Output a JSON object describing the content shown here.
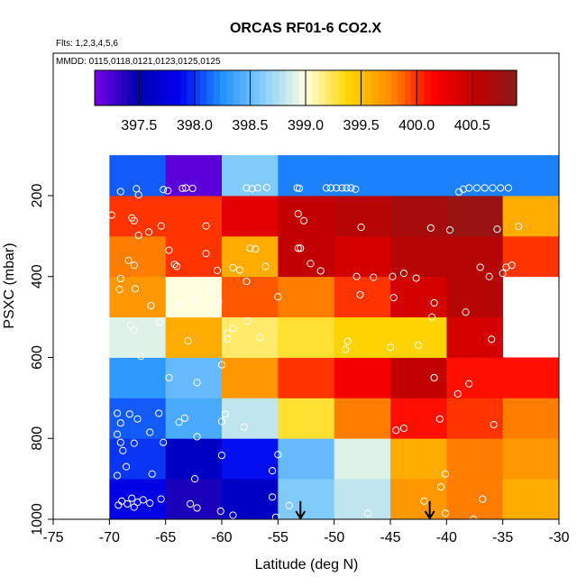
{
  "chart_data": {
    "type": "heatmap",
    "title": "ORCAS RF01-6 CO2.X",
    "subtitle_flights": "Flts: 1,2,3,4,5,6",
    "subtitle_dates": "MMDD: 0115,0118,0121,0123,0125,0125",
    "xlabel": "Latitude (deg N)",
    "ylabel": "PSXC (mbar)",
    "xlim": [
      -75,
      -30
    ],
    "ylim": [
      1000,
      100
    ],
    "x_ticks": [
      -75,
      -70,
      -65,
      -60,
      -55,
      -50,
      -45,
      -40,
      -35,
      -30
    ],
    "x_tick_labels": [
      "-75",
      "-70",
      "-65",
      "-60",
      "-55",
      "-50",
      "-45",
      "-40",
      "-35",
      "-30"
    ],
    "y_ticks": [
      200,
      400,
      600,
      800,
      1000
    ],
    "y_tick_labels": [
      "200",
      "400",
      "600",
      "800",
      "1000"
    ],
    "colorbar": {
      "min": 397.1,
      "max": 400.9,
      "ticks": [
        397.5,
        398.0,
        398.5,
        399.0,
        399.5,
        400.0,
        400.5
      ],
      "tick_labels": [
        "397.5",
        "398.0",
        "398.5",
        "399.0",
        "399.5",
        "400.0",
        "400.5"
      ],
      "colors": [
        "#7a00e6",
        "#0000b0",
        "#0000ee",
        "#1e90ff",
        "#87cefa",
        "#ffffe0",
        "#ffd700",
        "#ff8c00",
        "#ff0000",
        "#c00000",
        "#8b1a1a"
      ]
    },
    "lat_edges": [
      -70,
      -65,
      -60,
      -55,
      -50,
      -45,
      -40,
      -35,
      -30
    ],
    "pressure_edges": [
      1000,
      900,
      800,
      700,
      600,
      500,
      400,
      300,
      200,
      100
    ],
    "cells": [
      [
        397.8,
        397.4,
        397.6,
        398.6,
        398.8,
        399.7,
        399.8,
        399.6,
        null
      ],
      [
        398.0,
        397.6,
        397.9,
        398.5,
        398.9,
        399.6,
        399.8,
        399.7,
        null
      ],
      [
        398.1,
        398.4,
        398.8,
        399.3,
        399.8,
        400.1,
        400.0,
        399.8,
        null
      ],
      [
        398.3,
        398.5,
        399.7,
        400.0,
        400.2,
        400.5,
        400.1,
        400.1,
        null
      ],
      [
        398.9,
        399.6,
        399.2,
        399.3,
        399.4,
        399.4,
        400.4,
        null,
        null
      ],
      [
        399.7,
        399.0,
        399.9,
        399.8,
        400.0,
        400.4,
        400.6,
        null,
        null
      ],
      [
        399.8,
        400.0,
        399.6,
        400.5,
        400.4,
        400.6,
        400.6,
        400.0,
        null
      ],
      [
        400.0,
        400.0,
        400.3,
        400.5,
        400.6,
        400.7,
        400.8,
        399.6,
        null
      ],
      [
        398.1,
        397.2,
        398.6,
        398.2,
        398.2,
        398.2,
        398.2,
        398.2,
        null
      ]
    ],
    "observations": [
      [
        -69.2,
        965
      ],
      [
        -68.9,
        955
      ],
      [
        -68.4,
        962
      ],
      [
        -68.0,
        948
      ],
      [
        -67.8,
        970
      ],
      [
        -67.5,
        958
      ],
      [
        -67.0,
        952
      ],
      [
        -66.4,
        960
      ],
      [
        -65.4,
        950
      ],
      [
        -62.8,
        962
      ],
      [
        -62.2,
        972
      ],
      [
        -60.1,
        980
      ],
      [
        -59.0,
        990
      ],
      [
        -55.2,
        995
      ],
      [
        -55.5,
        945
      ],
      [
        -54.0,
        966
      ],
      [
        -47.0,
        985
      ],
      [
        -42.0,
        955
      ],
      [
        -40.1,
        985
      ],
      [
        -36.8,
        950
      ],
      [
        -37.6,
        1000
      ],
      [
        -69.3,
        892
      ],
      [
        -68.5,
        870
      ],
      [
        -66.2,
        888
      ],
      [
        -62.4,
        900
      ],
      [
        -60.0,
        842
      ],
      [
        -55.0,
        840
      ],
      [
        -55.5,
        880
      ],
      [
        -40.1,
        888
      ],
      [
        -40.5,
        920
      ],
      [
        -69.3,
        790
      ],
      [
        -69.0,
        810
      ],
      [
        -68.8,
        830
      ],
      [
        -67.8,
        812
      ],
      [
        -69.0,
        762
      ],
      [
        -67.5,
        752
      ],
      [
        -66.4,
        785
      ],
      [
        -65.2,
        810
      ],
      [
        -62.2,
        796
      ],
      [
        -60.0,
        758
      ],
      [
        -58.0,
        772
      ],
      [
        -59.7,
        740
      ],
      [
        -44.5,
        780
      ],
      [
        -43.8,
        775
      ],
      [
        -40.6,
        752
      ],
      [
        -35.8,
        766
      ],
      [
        -69.3,
        738
      ],
      [
        -68.2,
        740
      ],
      [
        -65.6,
        738
      ],
      [
        -63.8,
        760
      ],
      [
        -63.3,
        750
      ],
      [
        -39.0,
        690
      ],
      [
        -38.0,
        665
      ],
      [
        -41.1,
        650
      ],
      [
        -64.7,
        650
      ],
      [
        -62.2,
        662
      ],
      [
        -60.0,
        618
      ],
      [
        -49.0,
        580
      ],
      [
        -45.0,
        575
      ],
      [
        -48.8,
        560
      ],
      [
        -41.3,
        500
      ],
      [
        -36.0,
        555
      ],
      [
        -42.5,
        570
      ],
      [
        -68.1,
        520
      ],
      [
        -67.8,
        533
      ],
      [
        -65.5,
        513
      ],
      [
        -63.0,
        559
      ],
      [
        -59.5,
        540
      ],
      [
        -59.0,
        528
      ],
      [
        -59.5,
        554
      ],
      [
        -57.7,
        510
      ],
      [
        -56.6,
        550
      ],
      [
        -67.2,
        597
      ],
      [
        -69.1,
        432
      ],
      [
        -67.7,
        430
      ],
      [
        -66.3,
        472
      ],
      [
        -63.7,
        469
      ],
      [
        -62.5,
        455
      ],
      [
        -61.0,
        430
      ],
      [
        -60.3,
        462
      ],
      [
        -55.0,
        450
      ],
      [
        -47.7,
        445
      ],
      [
        -44.7,
        452
      ],
      [
        -41.1,
        465
      ],
      [
        -38.3,
        488
      ],
      [
        -69.0,
        405
      ],
      [
        -68.3,
        360
      ],
      [
        -67.8,
        372
      ],
      [
        -64.7,
        335
      ],
      [
        -64.2,
        370
      ],
      [
        -64.0,
        375
      ],
      [
        -61.4,
        343
      ],
      [
        -60.4,
        385
      ],
      [
        -59.0,
        378
      ],
      [
        -58.4,
        384
      ],
      [
        -57.8,
        412
      ],
      [
        -57.5,
        330
      ],
      [
        -57.0,
        332
      ],
      [
        -56.1,
        375
      ],
      [
        -52.1,
        368
      ],
      [
        -51.2,
        386
      ],
      [
        -53.0,
        330
      ],
      [
        -53.2,
        330
      ],
      [
        -48.0,
        400
      ],
      [
        -46.5,
        402
      ],
      [
        -43.8,
        392
      ],
      [
        -42.7,
        404
      ],
      [
        -44.8,
        400
      ],
      [
        -37.0,
        377
      ],
      [
        -36.2,
        400
      ],
      [
        -34.2,
        372
      ],
      [
        -34.7,
        377
      ],
      [
        -35.0,
        392
      ],
      [
        -69.8,
        248
      ],
      [
        -68.0,
        255
      ],
      [
        -67.8,
        262
      ],
      [
        -67.4,
        298
      ],
      [
        -66.5,
        290
      ],
      [
        -65.4,
        275
      ],
      [
        -61.4,
        275
      ],
      [
        -53.2,
        245
      ],
      [
        -52.7,
        262
      ],
      [
        -47.6,
        278
      ],
      [
        -41.4,
        280
      ],
      [
        -35.5,
        283
      ],
      [
        -39.7,
        285
      ],
      [
        -69.0,
        190
      ],
      [
        -67.6,
        183
      ],
      [
        -67.4,
        198
      ],
      [
        -65.2,
        185
      ],
      [
        -64.8,
        188
      ],
      [
        -63.5,
        182
      ],
      [
        -63.2,
        181
      ],
      [
        -62.6,
        182
      ],
      [
        -57.8,
        181
      ],
      [
        -57.3,
        183
      ],
      [
        -56.8,
        181
      ],
      [
        -56.0,
        180
      ],
      [
        -53.3,
        181
      ],
      [
        -53.1,
        182
      ],
      [
        -50.7,
        181
      ],
      [
        -50.3,
        181
      ],
      [
        -49.8,
        181
      ],
      [
        -49.3,
        181
      ],
      [
        -48.9,
        181
      ],
      [
        -48.5,
        181
      ],
      [
        -48.1,
        184
      ],
      [
        -38.9,
        191
      ],
      [
        -38.5,
        184
      ],
      [
        -38.0,
        181
      ],
      [
        -37.3,
        181
      ],
      [
        -36.6,
        181
      ],
      [
        -35.9,
        181
      ],
      [
        -35.2,
        181
      ],
      [
        -34.5,
        181
      ],
      [
        -33.6,
        276
      ]
    ],
    "arrows_lat": [
      -53.0,
      -41.5
    ],
    "arrows_top_pressure": 955
  }
}
